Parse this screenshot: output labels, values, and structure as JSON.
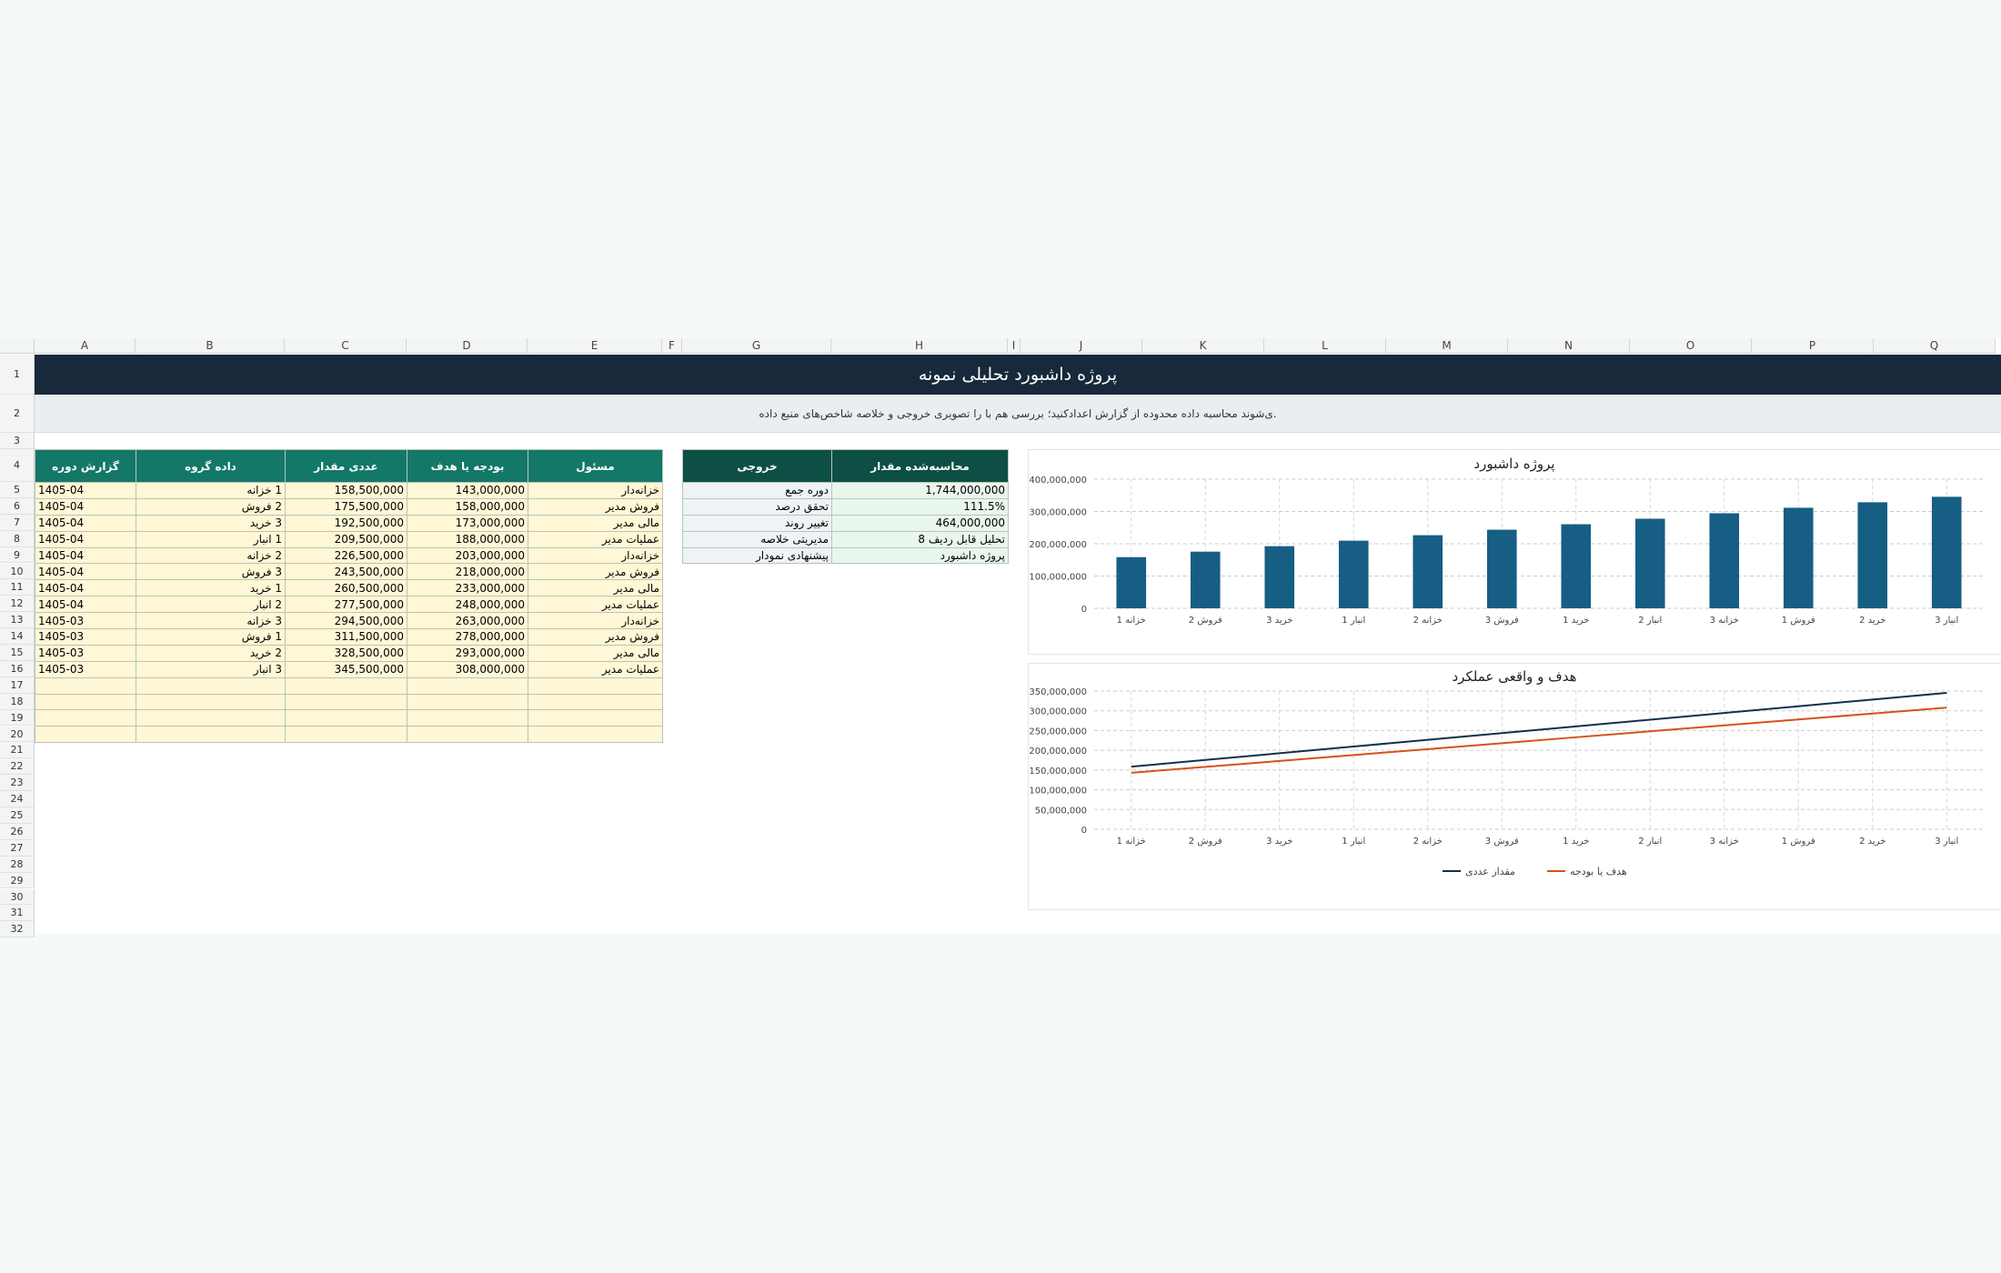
{
  "columns": [
    "A",
    "B",
    "C",
    "D",
    "E",
    "F",
    "G",
    "H",
    "I",
    "J",
    "K",
    "L",
    "M",
    "N",
    "O",
    "P",
    "Q"
  ],
  "rows": [
    "1",
    "2",
    "3",
    "4",
    "5",
    "6",
    "7",
    "8",
    "9",
    "10",
    "11",
    "12",
    "13",
    "14",
    "15",
    "16",
    "17",
    "18",
    "19",
    "20",
    "21",
    "22",
    "23",
    "24",
    "25",
    "26",
    "27",
    "28",
    "29",
    "30",
    "31",
    "32"
  ],
  "sheet": {
    "title": "پروژه داشبورد تحلیلی نمونه",
    "note": ".ی‌شوند محاسبه داده محدوده از گزارش اعدادکنید؛ بررسی هم با را تصویری خروجی و خلاصه شاخص‌های منبع داده"
  },
  "data_table": {
    "headers": [
      "گزارش دوره",
      "داده گروه",
      "عددی مقدار",
      "بودجه یا هدف",
      "مسئول"
    ],
    "rows": [
      [
        "1405-04",
        "1 خزانه",
        "158,500,000",
        "143,000,000",
        "خزانه‌دار"
      ],
      [
        "1405-04",
        "2 فروش",
        "175,500,000",
        "158,000,000",
        "فروش مدیر"
      ],
      [
        "1405-04",
        "3 خرید",
        "192,500,000",
        "173,000,000",
        "مالی مدیر"
      ],
      [
        "1405-04",
        "1 انبار",
        "209,500,000",
        "188,000,000",
        "عملیات مدیر"
      ],
      [
        "1405-04",
        "2 خزانه",
        "226,500,000",
        "203,000,000",
        "خزانه‌دار"
      ],
      [
        "1405-04",
        "3 فروش",
        "243,500,000",
        "218,000,000",
        "فروش مدیر"
      ],
      [
        "1405-04",
        "1 خرید",
        "260,500,000",
        "233,000,000",
        "مالی مدیر"
      ],
      [
        "1405-04",
        "2 انبار",
        "277,500,000",
        "248,000,000",
        "عملیات مدیر"
      ],
      [
        "1405-03",
        "3 خزانه",
        "294,500,000",
        "263,000,000",
        "خزانه‌دار"
      ],
      [
        "1405-03",
        "1 فروش",
        "311,500,000",
        "278,000,000",
        "فروش مدیر"
      ],
      [
        "1405-03",
        "2 خرید",
        "328,500,000",
        "293,000,000",
        "مالی مدیر"
      ],
      [
        "1405-03",
        "3 انبار",
        "345,500,000",
        "308,000,000",
        "عملیات مدیر"
      ]
    ]
  },
  "summary_table": {
    "headers": [
      "خروجی",
      "محاسبه‌شده مقدار"
    ],
    "rows": [
      [
        "دوره جمع",
        "1,744,000,000"
      ],
      [
        "تحقق درصد",
        "111.5%"
      ],
      [
        "تغییر روند",
        "464,000,000"
      ],
      [
        "مدیریتی خلاصه",
        "تحلیل قابل ردیف 8"
      ],
      [
        "پیشنهادی نمودار",
        "پروژه داشبورد"
      ]
    ]
  },
  "colors": {
    "title_bg": "#17293b",
    "header_teal": "#137868",
    "header_dark": "#0d4f44",
    "bar": "#165e84",
    "line_actual": "#12304d",
    "line_target": "#d4531b",
    "input_cell": "#fff7d6"
  },
  "chart_data": [
    {
      "type": "bar",
      "title": "پروژه داشبورد",
      "categories": [
        "خزانه 1",
        "فروش 2",
        "خرید 3",
        "انبار 1",
        "خزانه 2",
        "فروش 3",
        "خرید 1",
        "انبار 2",
        "خزانه 3",
        "فروش 1",
        "خرید 2",
        "انبار 3"
      ],
      "values": [
        158500000,
        175500000,
        192500000,
        209500000,
        226500000,
        243500000,
        260500000,
        277500000,
        294500000,
        311500000,
        328500000,
        345500000
      ],
      "ylim": [
        0,
        400000000
      ],
      "yticks": [
        0,
        100000000,
        200000000,
        300000000,
        400000000
      ],
      "ytick_labels": [
        "0",
        "100,000,000",
        "200,000,000",
        "300,000,000",
        "400,000,000"
      ],
      "grid": true
    },
    {
      "type": "line",
      "title": "هدف و واقعی عملکرد",
      "categories": [
        "خزانه 1",
        "فروش 2",
        "خرید 3",
        "انبار 1",
        "خزانه 2",
        "فروش 3",
        "خرید 1",
        "انبار 2",
        "خزانه 3",
        "فروش 1",
        "خرید 2",
        "انبار 3"
      ],
      "series": [
        {
          "name": "مقدار عددی",
          "values": [
            158500000,
            175500000,
            192500000,
            209500000,
            226500000,
            243500000,
            260500000,
            277500000,
            294500000,
            311500000,
            328500000,
            345500000
          ]
        },
        {
          "name": "هدف یا بودجه",
          "values": [
            143000000,
            158000000,
            173000000,
            188000000,
            203000000,
            218000000,
            233000000,
            248000000,
            263000000,
            278000000,
            293000000,
            308000000
          ]
        }
      ],
      "ylim": [
        0,
        350000000
      ],
      "yticks": [
        0,
        50000000,
        100000000,
        150000000,
        200000000,
        250000000,
        300000000,
        350000000
      ],
      "ytick_labels": [
        "0",
        "50,000,000",
        "100,000,000",
        "150,000,000",
        "200,000,000",
        "250,000,000",
        "300,000,000",
        "350,000,000"
      ],
      "legend": "bottom",
      "grid": true
    }
  ]
}
